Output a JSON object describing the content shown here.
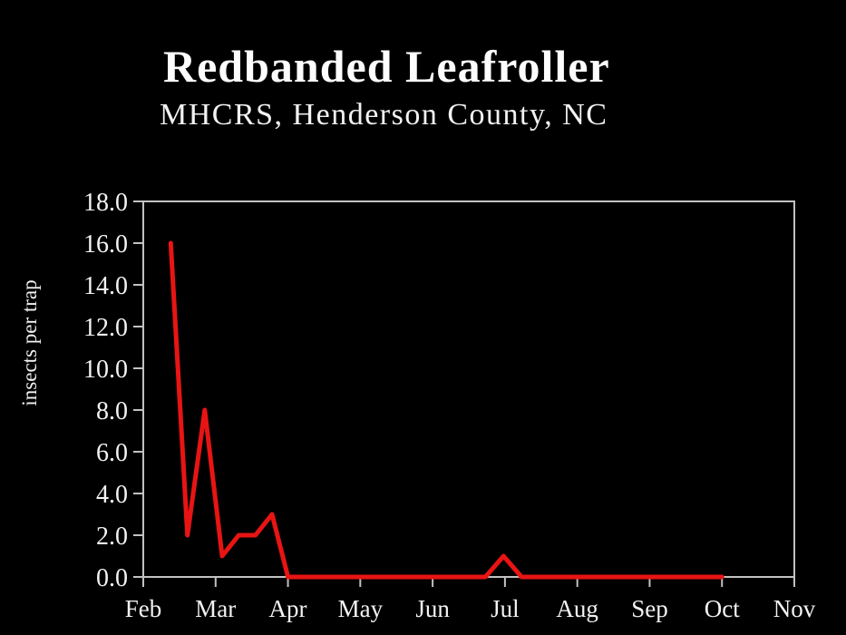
{
  "chart_data": {
    "type": "line",
    "title": "Redbanded Leafroller",
    "subtitle": "MHCRS, Henderson County, NC",
    "ylabel": "insects per trap",
    "x_axis": {
      "tick_labels": [
        "Feb",
        "Mar",
        "Apr",
        "May",
        "Jun",
        "Jul",
        "Aug",
        "Sep",
        "Oct",
        "Nov"
      ],
      "range_month_units": [
        0,
        9
      ],
      "grid": false
    },
    "y_axis": {
      "ticks": [
        0,
        2,
        4,
        6,
        8,
        10,
        12,
        14,
        16,
        18
      ],
      "tick_labels": [
        "0.0",
        "2.0",
        "4.0",
        "6.0",
        "8.0",
        "10.0",
        "12.0",
        "14.0",
        "16.0",
        "18.0"
      ],
      "range": [
        0,
        18
      ],
      "grid": false
    },
    "series": [
      {
        "name": "insects per trap",
        "color": "#e81414",
        "points_month_value": [
          [
            0.38,
            16.0
          ],
          [
            0.61,
            2.0
          ],
          [
            0.85,
            8.0
          ],
          [
            1.09,
            1.0
          ],
          [
            1.32,
            2.0
          ],
          [
            1.55,
            2.0
          ],
          [
            1.78,
            3.0
          ],
          [
            2.0,
            0.0
          ],
          [
            4.73,
            0.0
          ],
          [
            4.98,
            1.0
          ],
          [
            5.23,
            0.0
          ],
          [
            8.0,
            0.0
          ]
        ]
      }
    ],
    "legend": "none",
    "colors": {
      "background": "#000000",
      "axis": "#c2c2c2",
      "tick_text": "#f2f2f2",
      "title_text": "#fdfdfd",
      "line": "#e81414"
    }
  }
}
